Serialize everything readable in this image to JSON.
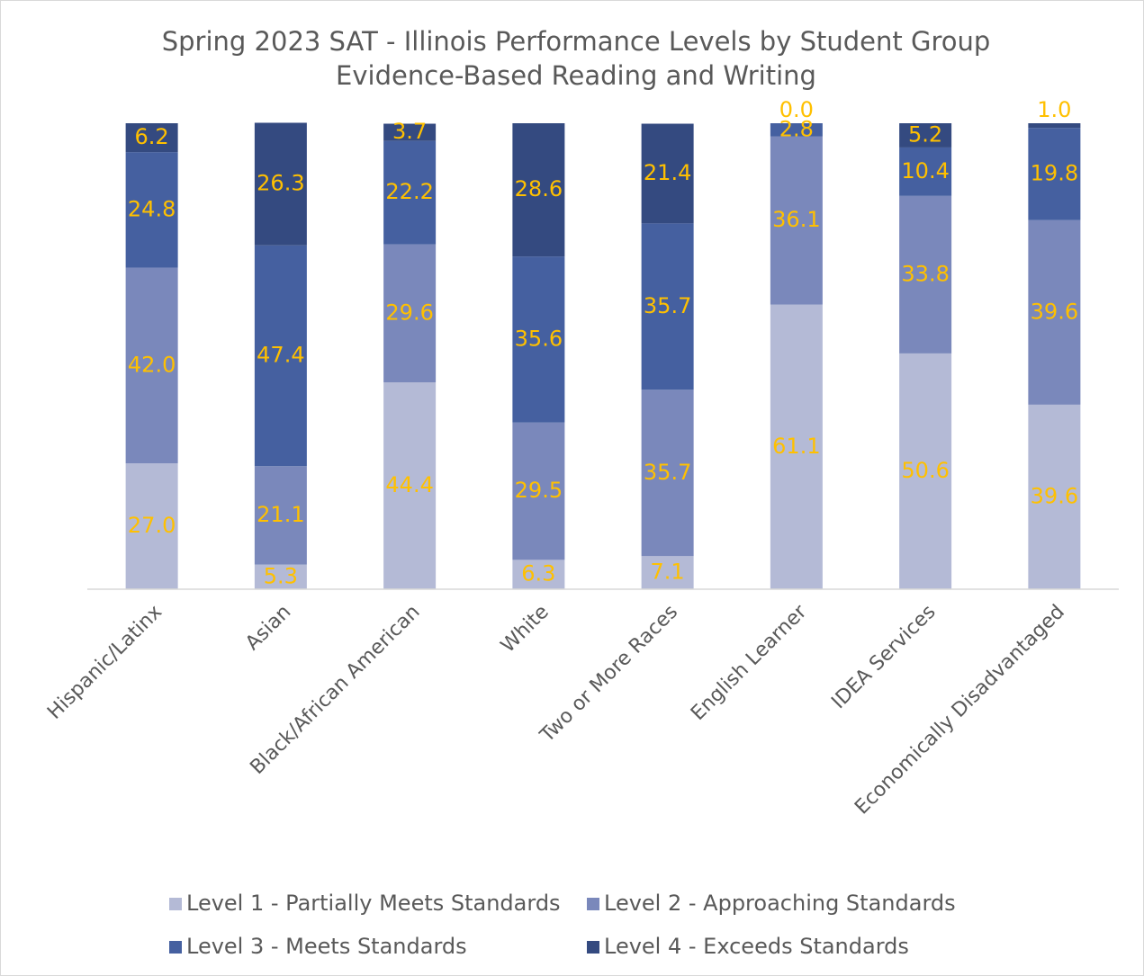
{
  "chart_data": {
    "type": "stacked_bar",
    "title": [
      "Spring 2023 SAT - Illinois Performance Levels by Student Group",
      "Evidence-Based Reading and Writing"
    ],
    "categories": [
      "Hispanic/Latinx",
      "Asian",
      "Black/African American",
      "White",
      "Two or More Races",
      "English Learner",
      "IDEA Services",
      "Economically Disadvantaged"
    ],
    "ylim": [
      0,
      100
    ],
    "series": [
      {
        "name": "Level 1 - Partially Meets Standards",
        "color": "#b4bad6",
        "values": [
          27.0,
          5.3,
          44.4,
          6.3,
          7.1,
          61.1,
          50.6,
          39.6
        ],
        "value_labels": [
          "27.0",
          "5.3",
          "44.4",
          "6.3",
          "7.1",
          "61.1",
          "50.6",
          "39.6"
        ]
      },
      {
        "name": "Level 2 - Approaching Standards",
        "color": "#7a88bb",
        "values": [
          42.0,
          21.1,
          29.6,
          29.5,
          35.7,
          36.1,
          33.8,
          39.6
        ],
        "value_labels": [
          "42.0",
          "21.1",
          "29.6",
          "29.5",
          "35.7",
          "36.1",
          "33.8",
          "39.6"
        ]
      },
      {
        "name": "Level 3 - Meets Standards",
        "color": "#4560a0",
        "values": [
          24.8,
          47.4,
          22.2,
          35.6,
          35.7,
          2.8,
          10.4,
          19.8
        ],
        "value_labels": [
          "24.8",
          "47.4",
          "22.2",
          "35.6",
          "35.7",
          "2.8",
          "10.4",
          "19.8"
        ]
      },
      {
        "name": "Level 4 - Exceeds Standards",
        "color": "#344a80",
        "values": [
          6.2,
          26.3,
          3.7,
          28.6,
          21.4,
          0.0,
          5.2,
          1.0
        ],
        "value_labels": [
          "6.2",
          "26.3",
          "3.7",
          "28.6",
          "21.4",
          "0.0",
          "5.2",
          "1.0"
        ]
      }
    ],
    "legend": "bottom"
  }
}
